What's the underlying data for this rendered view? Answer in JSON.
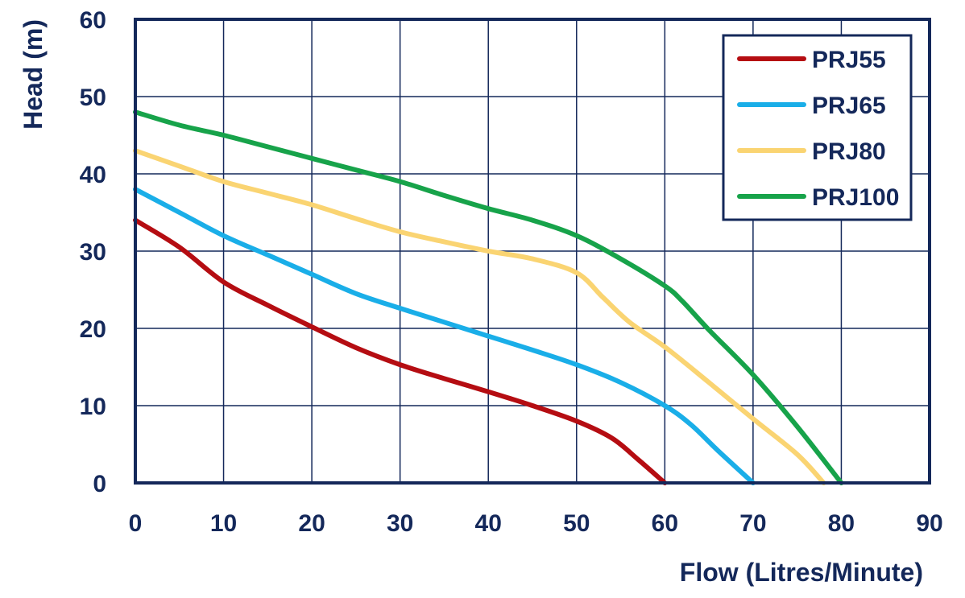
{
  "chart_data": {
    "type": "line",
    "title": "",
    "xlabel": "Flow (Litres/Minute)",
    "ylabel": "Head (m)",
    "xlim": [
      0,
      90
    ],
    "ylim": [
      0,
      60
    ],
    "x_ticks": [
      0,
      10,
      20,
      30,
      40,
      50,
      60,
      70,
      80,
      90
    ],
    "y_ticks": [
      0,
      10,
      20,
      30,
      40,
      50,
      60
    ],
    "grid": true,
    "legend_position": "top-right",
    "series": [
      {
        "name": "PRJ55",
        "color": "#b50d12",
        "points": [
          [
            0,
            34
          ],
          [
            5,
            30.5
          ],
          [
            10,
            26
          ],
          [
            15,
            23
          ],
          [
            20,
            20.2
          ],
          [
            25,
            17.5
          ],
          [
            30,
            15.3
          ],
          [
            35,
            13.5
          ],
          [
            40,
            11.8
          ],
          [
            45,
            10
          ],
          [
            50,
            8
          ],
          [
            54,
            5.8
          ],
          [
            57,
            3
          ],
          [
            60,
            0
          ]
        ]
      },
      {
        "name": "PRJ65",
        "color": "#1aaee8",
        "points": [
          [
            0,
            38
          ],
          [
            5,
            35
          ],
          [
            10,
            32
          ],
          [
            15,
            29.5
          ],
          [
            20,
            27
          ],
          [
            25,
            24.5
          ],
          [
            30,
            22.6
          ],
          [
            35,
            20.8
          ],
          [
            40,
            19
          ],
          [
            45,
            17.2
          ],
          [
            50,
            15.3
          ],
          [
            55,
            13
          ],
          [
            60,
            10
          ],
          [
            63,
            7.5
          ],
          [
            66,
            4.2
          ],
          [
            70,
            0
          ]
        ]
      },
      {
        "name": "PRJ80",
        "color": "#fad472",
        "points": [
          [
            0,
            43
          ],
          [
            5,
            41
          ],
          [
            10,
            39
          ],
          [
            15,
            37.5
          ],
          [
            20,
            36
          ],
          [
            25,
            34.2
          ],
          [
            30,
            32.5
          ],
          [
            35,
            31.2
          ],
          [
            40,
            30
          ],
          [
            45,
            29
          ],
          [
            50,
            27.2
          ],
          [
            53,
            24
          ],
          [
            56,
            20.8
          ],
          [
            60,
            17.6
          ],
          [
            65,
            13
          ],
          [
            70,
            8.3
          ],
          [
            75,
            3.7
          ],
          [
            78,
            0
          ]
        ]
      },
      {
        "name": "PRJ100",
        "color": "#17a34a",
        "points": [
          [
            0,
            48
          ],
          [
            5,
            46.3
          ],
          [
            10,
            45
          ],
          [
            15,
            43.5
          ],
          [
            20,
            42
          ],
          [
            25,
            40.5
          ],
          [
            30,
            39
          ],
          [
            35,
            37.2
          ],
          [
            40,
            35.5
          ],
          [
            45,
            34
          ],
          [
            50,
            32
          ],
          [
            55,
            29
          ],
          [
            60,
            25.5
          ],
          [
            62,
            23.5
          ],
          [
            65,
            19.8
          ],
          [
            70,
            14
          ],
          [
            75,
            7.3
          ],
          [
            80,
            0
          ]
        ]
      }
    ]
  },
  "colors": {
    "axis": "#14285a",
    "grid": "#14285a",
    "background": "#ffffff"
  }
}
